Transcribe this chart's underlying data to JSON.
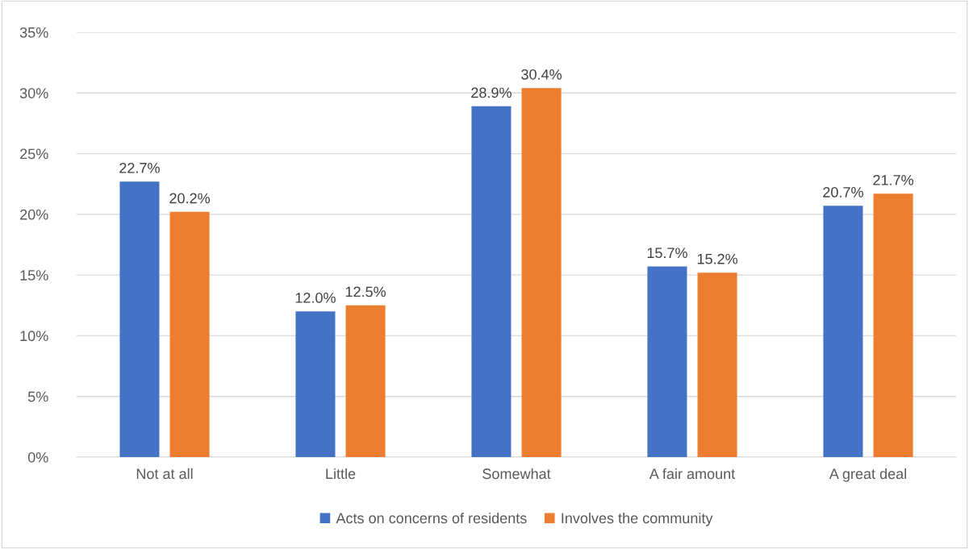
{
  "chart_data": {
    "type": "bar",
    "categories": [
      "Not at all",
      "Little",
      "Somewhat",
      "A fair amount",
      "A great deal"
    ],
    "series": [
      {
        "name": "Acts on concerns of residents",
        "color": "#4472c4",
        "values": [
          22.7,
          12.0,
          28.9,
          15.7,
          20.7
        ]
      },
      {
        "name": "Involves the community",
        "color": "#ed7d31",
        "values": [
          20.2,
          12.5,
          30.4,
          15.2,
          21.7
        ]
      }
    ],
    "ylim": [
      0,
      35
    ],
    "yticks": [
      {
        "value": 0,
        "label": "0%"
      },
      {
        "value": 5,
        "label": "5%"
      },
      {
        "value": 10,
        "label": "10%"
      },
      {
        "value": 15,
        "label": "15%"
      },
      {
        "value": 20,
        "label": "20%"
      },
      {
        "value": 25,
        "label": "25%"
      },
      {
        "value": 30,
        "label": "30%"
      },
      {
        "value": 35,
        "label": "35%"
      }
    ],
    "value_labels": [
      [
        "22.7%",
        "12.0%",
        "28.9%",
        "15.7%",
        "20.7%"
      ],
      [
        "20.2%",
        "12.5%",
        "30.4%",
        "15.2%",
        "21.7%"
      ]
    ],
    "grid": "y",
    "legend": "bottom"
  }
}
